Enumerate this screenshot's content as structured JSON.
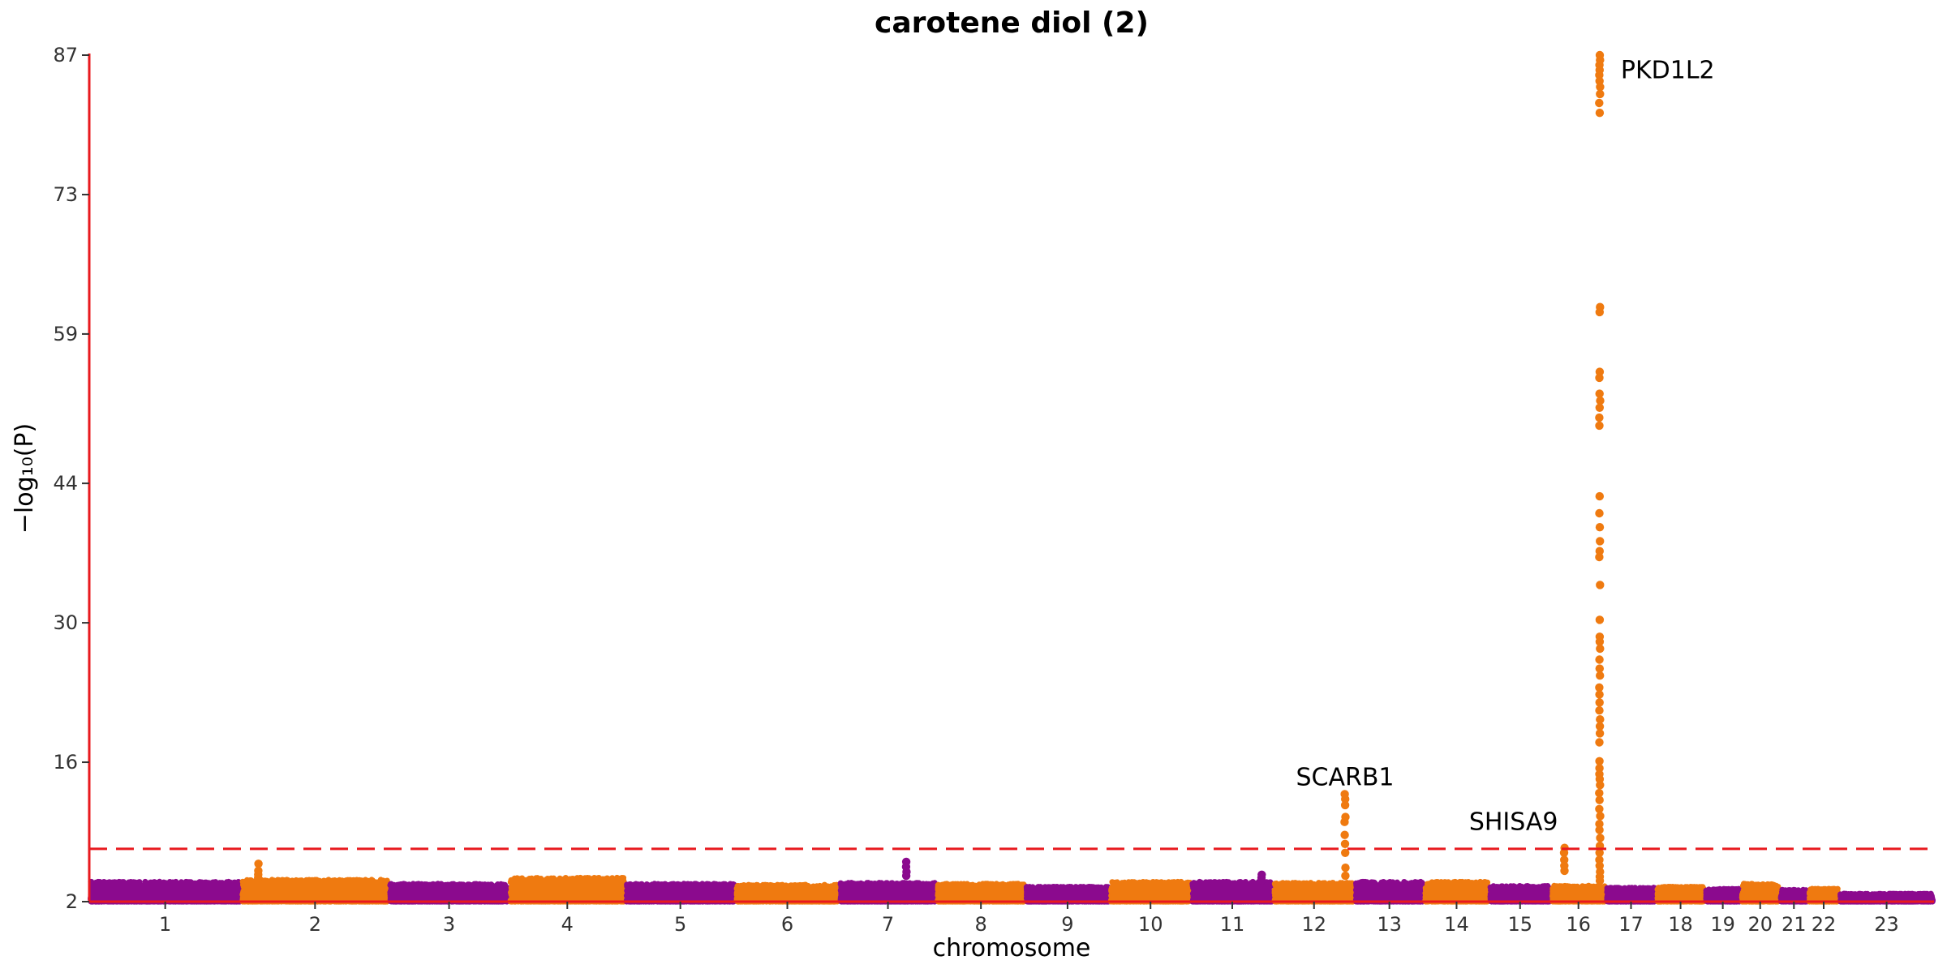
{
  "chart_data": {
    "type": "scatter",
    "title": "carotene diol (2)",
    "xlabel": "chromosome",
    "ylabel": "−log₁₀(P)",
    "ylim": [
      2,
      87
    ],
    "yticks": [
      2,
      16,
      30,
      44,
      59,
      73,
      87
    ],
    "threshold": 7.3,
    "threshold_color": "#e8191e",
    "axis_color": "#e8191e",
    "colors": [
      "#8b0a8e",
      "#ef7a10"
    ],
    "grid": false,
    "legend": "none",
    "chromosomes": [
      {
        "label": "1",
        "start": 0,
        "end": 250,
        "base_max": 4.0
      },
      {
        "label": "2",
        "start": 250,
        "end": 493,
        "base_max": 4.2
      },
      {
        "label": "3",
        "start": 493,
        "end": 691,
        "base_max": 3.8
      },
      {
        "label": "4",
        "start": 691,
        "end": 882,
        "base_max": 4.4
      },
      {
        "label": "5",
        "start": 882,
        "end": 1063,
        "base_max": 3.8
      },
      {
        "label": "6",
        "start": 1063,
        "end": 1234,
        "base_max": 3.7
      },
      {
        "label": "7",
        "start": 1234,
        "end": 1394,
        "base_max": 3.9
      },
      {
        "label": "8",
        "start": 1394,
        "end": 1540,
        "base_max": 3.8
      },
      {
        "label": "9",
        "start": 1540,
        "end": 1679,
        "base_max": 3.5
      },
      {
        "label": "10",
        "start": 1679,
        "end": 1813,
        "base_max": 4.0
      },
      {
        "label": "11",
        "start": 1813,
        "end": 1948,
        "base_max": 4.0
      },
      {
        "label": "12",
        "start": 1948,
        "end": 2082,
        "base_max": 3.9
      },
      {
        "label": "13",
        "start": 2082,
        "end": 2196,
        "base_max": 4.0
      },
      {
        "label": "14",
        "start": 2196,
        "end": 2303,
        "base_max": 4.0
      },
      {
        "label": "15",
        "start": 2303,
        "end": 2405,
        "base_max": 3.6
      },
      {
        "label": "16",
        "start": 2405,
        "end": 2495,
        "base_max": 3.6
      },
      {
        "label": "17",
        "start": 2495,
        "end": 2578,
        "base_max": 3.4
      },
      {
        "label": "18",
        "start": 2578,
        "end": 2658,
        "base_max": 3.5
      },
      {
        "label": "19",
        "start": 2658,
        "end": 2717,
        "base_max": 3.3
      },
      {
        "label": "20",
        "start": 2717,
        "end": 2781,
        "base_max": 3.8
      },
      {
        "label": "21",
        "start": 2781,
        "end": 2828,
        "base_max": 3.2
      },
      {
        "label": "22",
        "start": 2828,
        "end": 2879,
        "base_max": 3.3
      },
      {
        "label": "23",
        "start": 2879,
        "end": 3035,
        "base_max": 2.8
      }
    ],
    "peaks": [
      {
        "chr": "2",
        "pos": 28,
        "values": [
          5.8,
          5.1,
          4.7,
          4.4
        ]
      },
      {
        "chr": "7",
        "pos": 110,
        "values": [
          6.0,
          5.5,
          5.0,
          4.6
        ]
      },
      {
        "chr": "11",
        "pos": 116,
        "values": [
          4.7,
          4.4,
          4.1
        ]
      },
      {
        "chr": "12",
        "pos": 118,
        "values": [
          12.8,
          12.3,
          11.7,
          10.5,
          10.0,
          8.7,
          7.8,
          6.9,
          5.4,
          4.6
        ]
      },
      {
        "chr": "16",
        "pos": 22,
        "values": [
          7.4,
          6.9,
          6.2,
          5.6,
          5.1
        ]
      },
      {
        "chr": "16",
        "pos": 80,
        "values": [
          87.0,
          86.5,
          86.0,
          85.5,
          85.0,
          84.4,
          83.8,
          83.1,
          82.2,
          81.2,
          61.7,
          61.2,
          55.2,
          54.6,
          53.0,
          52.3,
          51.6,
          50.6,
          49.8,
          42.7,
          41.0,
          39.6,
          38.2,
          37.2,
          36.6,
          33.8,
          30.3,
          28.6,
          28.1,
          27.4,
          26.3,
          25.4,
          24.7,
          23.5,
          22.8,
          22.0,
          21.2,
          20.3,
          19.6,
          18.9,
          18.0,
          16.1,
          15.4,
          14.8,
          14.3,
          13.7,
          12.9,
          12.2,
          11.3,
          10.6,
          9.8,
          9.2,
          8.4,
          7.6,
          6.9,
          6.2,
          5.6,
          5.0,
          4.5,
          4.1
        ]
      }
    ],
    "annotations": [
      {
        "text": "PKD1L2",
        "chr": "16",
        "pos": 80,
        "y": 85.5,
        "anchor": "start"
      },
      {
        "text": "SCARB1",
        "chr": "12",
        "pos": 118,
        "y": 14.5,
        "anchor": "middle"
      },
      {
        "text": "SHISA9",
        "chr": "16",
        "pos": 22,
        "y": 10.0,
        "anchor": "end"
      }
    ]
  }
}
